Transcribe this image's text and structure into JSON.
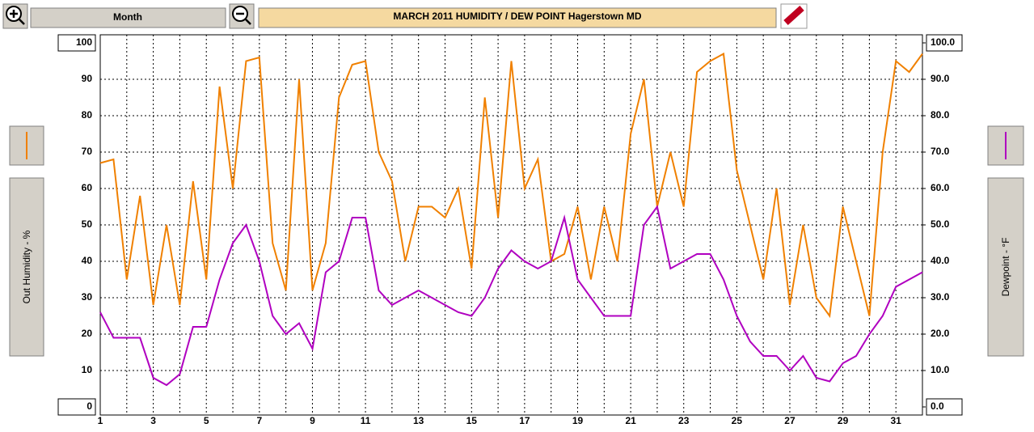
{
  "header": {
    "period_button": "Month"
  },
  "chart_data": {
    "type": "line",
    "title": "MARCH 2011   HUMIDITY / DEW POINT  Hagerstown MD",
    "ylabel": "Out Humidity - %",
    "y2label": "Dewpoint - °F",
    "x": [
      1,
      1.5,
      2,
      2.5,
      3,
      3.5,
      4,
      4.5,
      5,
      5.5,
      6,
      6.5,
      7,
      7.5,
      8,
      8.5,
      9,
      9.5,
      10,
      10.5,
      11,
      11.5,
      12,
      12.5,
      13,
      13.5,
      14,
      14.5,
      15,
      15.5,
      16,
      16.5,
      17,
      17.5,
      18,
      18.5,
      19,
      19.5,
      20,
      20.5,
      21,
      21.5,
      22,
      22.5,
      23,
      23.5,
      24,
      24.5,
      25,
      25.5,
      26,
      26.5,
      27,
      27.5,
      28,
      28.5,
      29,
      29.5,
      30,
      30.5,
      31,
      31.5,
      32
    ],
    "series": [
      {
        "color": "#f08000",
        "axis": "y",
        "values": [
          67,
          68,
          35,
          58,
          28,
          50,
          28,
          62,
          35,
          88,
          60,
          95,
          96,
          45,
          32,
          90,
          32,
          45,
          85,
          94,
          95,
          70,
          62,
          40,
          55,
          55,
          52,
          60,
          38,
          85,
          52,
          95,
          60,
          68,
          40,
          42,
          55,
          35,
          55,
          40,
          75,
          90,
          55,
          70,
          55,
          92,
          95,
          97,
          65,
          50,
          35,
          60,
          28,
          50,
          30,
          25,
          55,
          40,
          25,
          70,
          95,
          92,
          97
        ]
      },
      {
        "color": "#b000c0",
        "axis": "y2",
        "values": [
          26,
          19,
          19,
          19,
          8,
          6,
          9,
          22,
          22,
          35,
          45,
          50,
          40,
          25,
          20,
          23,
          16,
          37,
          40,
          52,
          52,
          32,
          28,
          30,
          32,
          30,
          28,
          26,
          25,
          30,
          38,
          43,
          40,
          38,
          40,
          52,
          35,
          30,
          25,
          25,
          25,
          50,
          55,
          38,
          40,
          42,
          42,
          35,
          25,
          18,
          14,
          14,
          10,
          14,
          8,
          7,
          12,
          14,
          20,
          25,
          33,
          35,
          37
        ]
      }
    ],
    "xlim": [
      1,
      32
    ],
    "xticks": [
      1,
      3,
      5,
      7,
      9,
      11,
      13,
      15,
      17,
      19,
      21,
      23,
      25,
      27,
      29,
      31
    ],
    "x_minor_ticks": [
      2,
      4,
      6,
      8,
      10,
      12,
      14,
      16,
      18,
      20,
      22,
      24,
      26,
      28,
      30,
      32
    ],
    "ylim": [
      0,
      100
    ],
    "yticks": [
      0,
      10,
      20,
      30,
      40,
      50,
      60,
      70,
      80,
      90,
      100
    ],
    "y2lim": [
      0,
      100
    ],
    "y2ticks": [
      {
        "value": 0,
        "label": "0.0"
      },
      {
        "value": 10,
        "label": "10.0"
      },
      {
        "value": 20,
        "label": "20.0"
      },
      {
        "value": 30,
        "label": "30.0"
      },
      {
        "value": 40,
        "label": "40.0"
      },
      {
        "value": 50,
        "label": "50.0"
      },
      {
        "value": 60,
        "label": "60.0"
      },
      {
        "value": 70,
        "label": "70.0"
      },
      {
        "value": 80,
        "label": "80.0"
      },
      {
        "value": 90,
        "label": "90.0"
      },
      {
        "value": 100,
        "label": "100.0"
      }
    ],
    "grid": true
  }
}
